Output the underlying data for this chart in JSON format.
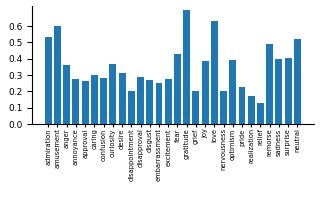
{
  "categories": [
    "admiration",
    "amusement",
    "anger",
    "annoyance",
    "approval",
    "caring",
    "confusion",
    "curiosity",
    "desire",
    "disappointment",
    "disapproval",
    "disgust",
    "embarrassment",
    "excitement",
    "fear",
    "gratitude",
    "grief",
    "joy",
    "love",
    "nervousness",
    "optimism",
    "pride",
    "realization",
    "relief",
    "remorse",
    "sadness",
    "surprise",
    "neutral"
  ],
  "values": [
    0.535,
    0.6,
    0.36,
    0.275,
    0.265,
    0.3,
    0.285,
    0.37,
    0.31,
    0.2,
    0.29,
    0.268,
    0.252,
    0.275,
    0.43,
    0.7,
    0.205,
    0.388,
    0.63,
    0.205,
    0.392,
    0.225,
    0.175,
    0.128,
    0.49,
    0.4,
    0.405,
    0.52
  ],
  "bar_color": "#1f77b4",
  "ylim": [
    0.0,
    0.72
  ],
  "yticks": [
    0.0,
    0.1,
    0.2,
    0.3,
    0.4,
    0.5,
    0.6
  ],
  "tick_fontsize": 6.5,
  "label_fontsize": 4.8
}
